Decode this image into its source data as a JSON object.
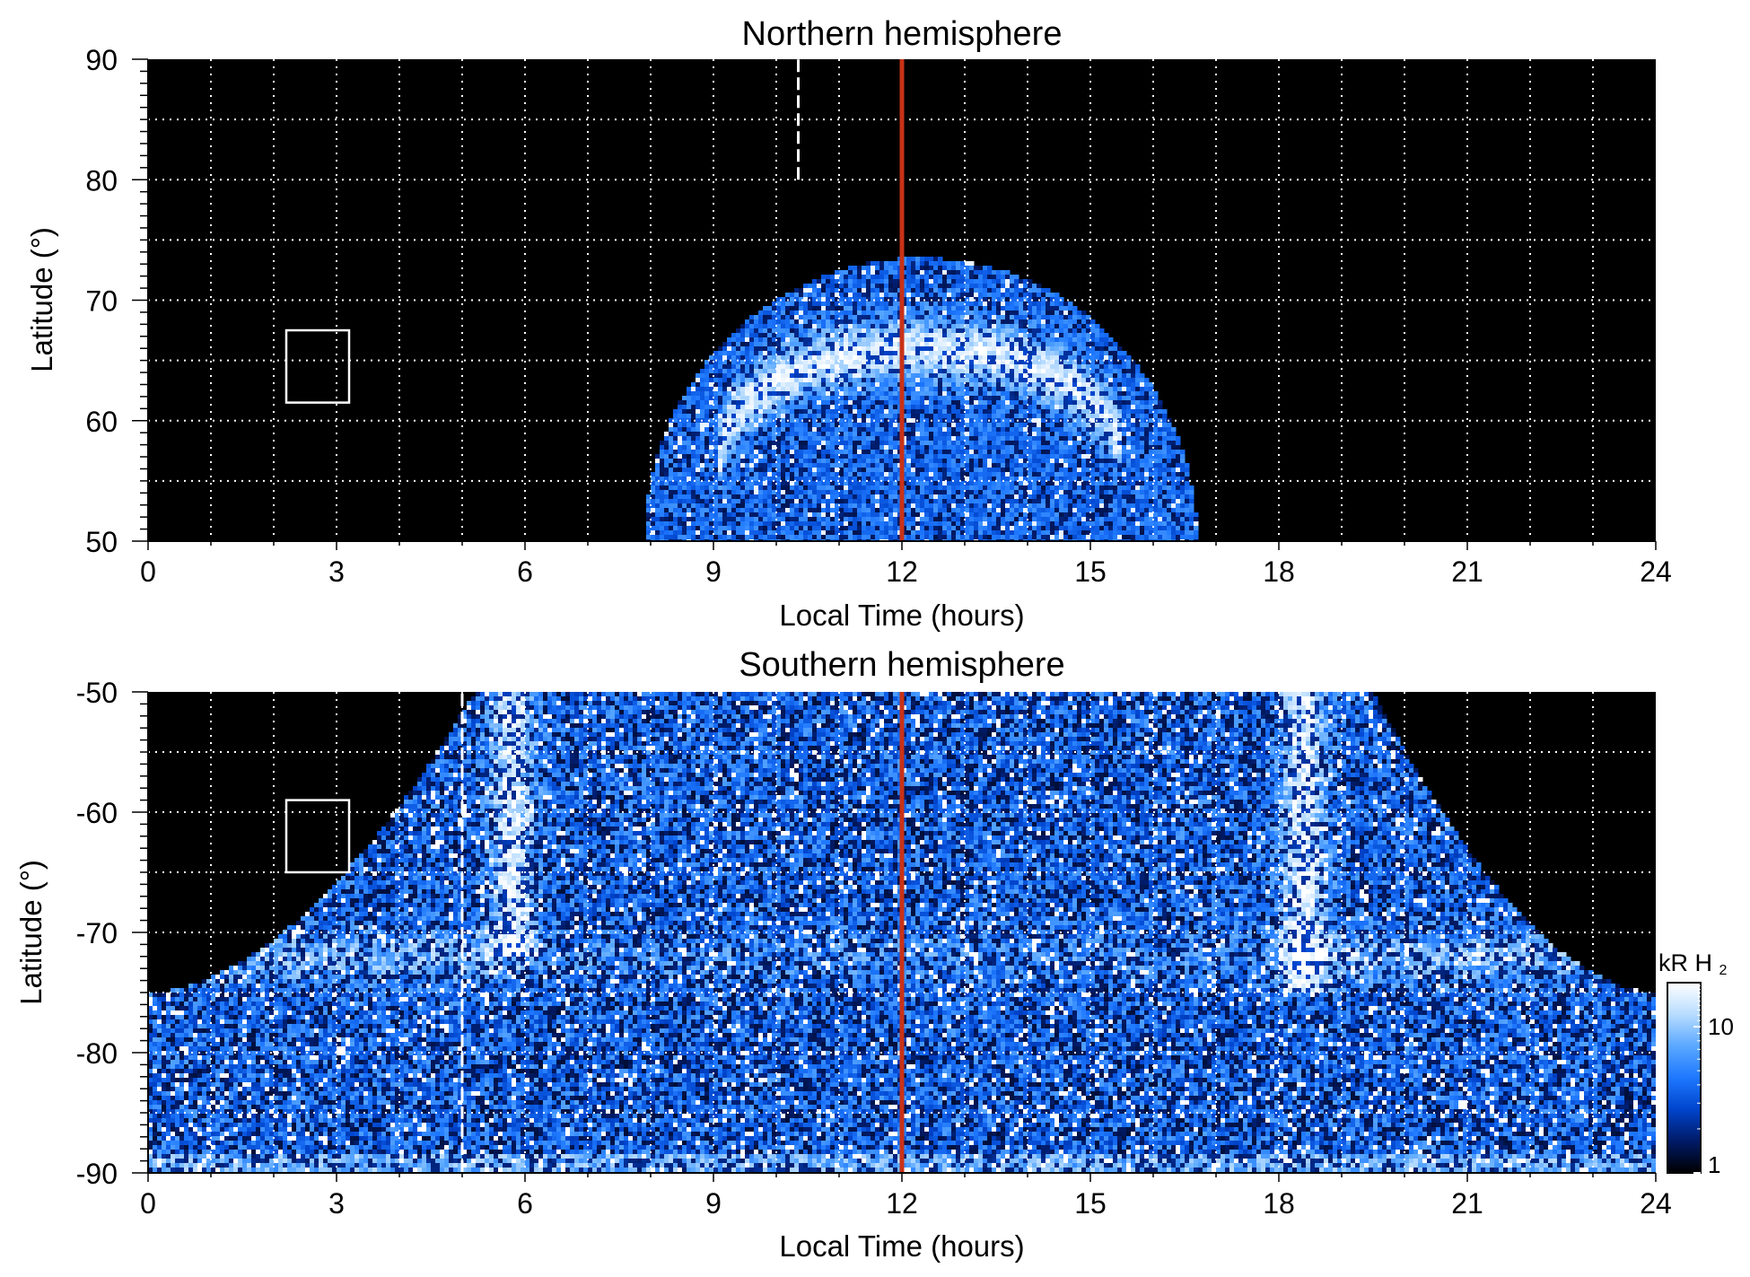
{
  "chart_data": [
    {
      "type": "heatmap",
      "title": "Northern hemisphere",
      "xlabel": "Local Time (hours)",
      "ylabel": "Latitude (°)",
      "xlim": [
        0,
        24
      ],
      "ylim": [
        50,
        90
      ],
      "x_ticks": [
        0,
        3,
        6,
        9,
        12,
        15,
        18,
        21,
        24
      ],
      "x_tick_labels": [
        "0",
        "3",
        "6",
        "9",
        "12",
        "15",
        "18",
        "21",
        "24"
      ],
      "y_ticks": [
        50,
        60,
        70,
        80,
        90
      ],
      "y_tick_labels": [
        "50",
        "60",
        "70",
        "80",
        "90"
      ],
      "grid": true,
      "grid_x_step_hours": 1,
      "grid_y_step_deg": 5,
      "noon_line_lt": 12,
      "noon_line_color": "#c83218",
      "dashed_line": {
        "lt": 10.35,
        "lat_from": 80,
        "lat_to": 90
      },
      "box": {
        "lt": [
          2.2,
          3.2
        ],
        "lat": [
          61.5,
          67.5
        ]
      },
      "coverage": {
        "center_lt": 12.3,
        "halfwidth_lt_at_50": 4.4,
        "max_lat": 73.5
      },
      "bright_arc": {
        "center_lt": 12.3,
        "halfwidth_lt": 3.2,
        "lat_peak": 66,
        "lat_base": 57
      }
    },
    {
      "type": "heatmap",
      "title": "Southern hemisphere",
      "xlabel": "Local Time (hours)",
      "ylabel": "Latitude (°)",
      "xlim": [
        0,
        24
      ],
      "ylim": [
        -90,
        -50
      ],
      "x_ticks": [
        0,
        3,
        6,
        9,
        12,
        15,
        18,
        21,
        24
      ],
      "x_tick_labels": [
        "0",
        "3",
        "6",
        "9",
        "12",
        "15",
        "18",
        "21",
        "24"
      ],
      "y_ticks": [
        -90,
        -80,
        -70,
        -60,
        -50
      ],
      "y_tick_labels": [
        "-90",
        "-80",
        "-70",
        "-60",
        "-50"
      ],
      "grid": true,
      "grid_x_step_hours": 1,
      "grid_y_step_deg": 5,
      "noon_line_lt": 12,
      "noon_line_color": "#c83218",
      "dashed_line": {
        "lt": 5,
        "lat_from": -90,
        "lat_to": -50
      },
      "box": {
        "lt": [
          2.2,
          3.2
        ],
        "lat": [
          -65,
          -59
        ]
      },
      "coverage": {
        "left_edge_lt_at_minus50": 5.2,
        "right_edge_lt_at_minus50": 19.5,
        "min_edge_lat": -75
      },
      "bright_bands": [
        {
          "lt": 5.8,
          "lat": [
            -72,
            -50
          ]
        },
        {
          "lt": 18.4,
          "lat": [
            -75,
            -50
          ]
        }
      ],
      "colorbar": {
        "label": "kR H",
        "label_subscript": "2",
        "scale": "log",
        "range": [
          1,
          20
        ],
        "tick_values": [
          1,
          10
        ],
        "tick_labels": [
          "1",
          "10"
        ],
        "colors": [
          "#000000",
          "#001a66",
          "#0044cc",
          "#1e78ff",
          "#5aa8ff",
          "#b8dcff",
          "#ffffff"
        ]
      }
    }
  ]
}
